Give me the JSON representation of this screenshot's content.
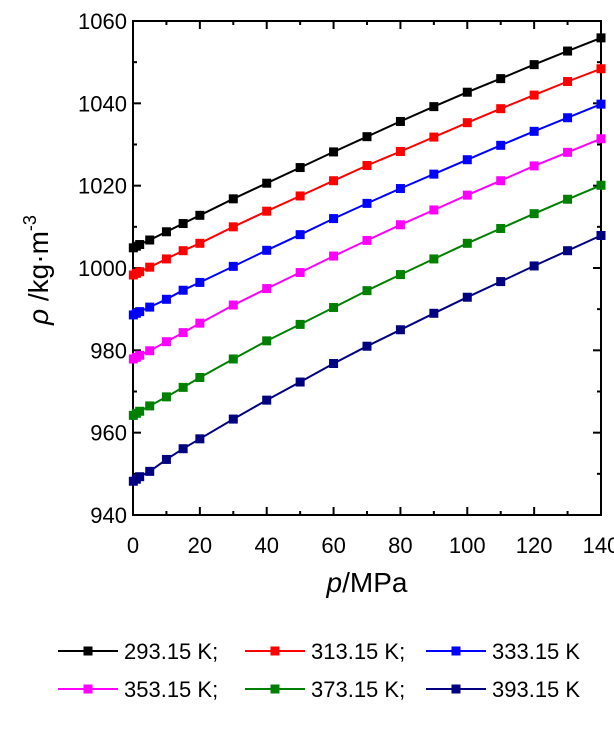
{
  "chart_data": {
    "type": "line",
    "xlabel": {
      "italic": "p",
      "unit": "/MPa"
    },
    "ylabel": {
      "italic": "ρ",
      "unit": " /kg·m",
      "sup": "-3"
    },
    "xlim": [
      0,
      140
    ],
    "ylim": [
      940,
      1060
    ],
    "xticks": [
      0,
      20,
      40,
      60,
      80,
      100,
      120,
      140
    ],
    "yticks": [
      940,
      960,
      980,
      1000,
      1020,
      1040,
      1060
    ],
    "grid": false,
    "legend_position": "bottom",
    "x": [
      0.1,
      1,
      2,
      5,
      10,
      15,
      20,
      30,
      40,
      50,
      60,
      70,
      80,
      90,
      100,
      110,
      120,
      130,
      140
    ],
    "series": [
      {
        "name": "293.15 K;",
        "color": "#000000",
        "values": [
          1004.9,
          1005.3,
          1005.7,
          1006.8,
          1008.8,
          1010.8,
          1012.8,
          1016.8,
          1020.6,
          1024.4,
          1028.2,
          1031.9,
          1035.6,
          1039.2,
          1042.7,
          1046.0,
          1049.4,
          1052.7,
          1055.9
        ]
      },
      {
        "name": "313.15 K;",
        "color": "#ff0000",
        "values": [
          998.3,
          998.7,
          999.1,
          1000.2,
          1002.2,
          1004.2,
          1006.0,
          1010.0,
          1013.8,
          1017.5,
          1021.2,
          1024.9,
          1028.3,
          1031.8,
          1035.3,
          1038.7,
          1042.0,
          1045.3,
          1048.4
        ]
      },
      {
        "name": "333.15 K",
        "color": "#0000ff",
        "values": [
          988.6,
          989.0,
          989.4,
          990.5,
          992.4,
          994.6,
          996.5,
          1000.4,
          1004.3,
          1008.1,
          1012.0,
          1015.7,
          1019.3,
          1022.8,
          1026.3,
          1029.8,
          1033.2,
          1036.5,
          1039.8
        ]
      },
      {
        "name": "353.15 K;",
        "color": "#ff00ff",
        "values": [
          977.9,
          978.3,
          978.8,
          979.9,
          982.1,
          984.3,
          986.6,
          991.0,
          995.0,
          998.9,
          1002.9,
          1006.7,
          1010.5,
          1014.1,
          1017.7,
          1021.2,
          1024.8,
          1028.1,
          1031.4
        ]
      },
      {
        "name": "373.15 K;",
        "color": "#008000",
        "values": [
          964.2,
          964.7,
          965.2,
          966.5,
          968.7,
          971.0,
          973.4,
          977.9,
          982.3,
          986.3,
          990.4,
          994.5,
          998.4,
          1002.2,
          1006.0,
          1009.6,
          1013.2,
          1016.7,
          1020.1
        ]
      },
      {
        "name": "393.15 K",
        "color": "#000080",
        "values": [
          948.2,
          948.7,
          949.3,
          950.6,
          953.5,
          956.1,
          958.5,
          963.3,
          967.9,
          972.3,
          976.8,
          981.0,
          985.0,
          989.0,
          992.9,
          996.7,
          1000.5,
          1004.2,
          1007.9
        ]
      }
    ]
  }
}
